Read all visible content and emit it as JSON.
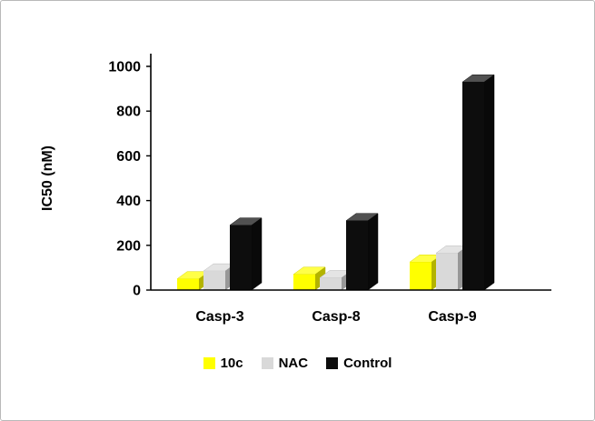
{
  "chart_data": {
    "type": "bar",
    "style": "3d-clustered",
    "title": "",
    "xlabel": "",
    "ylabel": "IC50 (nM)",
    "ylim": [
      0,
      1000
    ],
    "yticks": [
      0,
      200,
      400,
      600,
      800,
      1000
    ],
    "grid": false,
    "legend_position": "bottom",
    "categories": [
      "Casp-3",
      "Casp-8",
      "Casp-9"
    ],
    "series": [
      {
        "name": "10c",
        "color": "#FFFF00",
        "values": [
          50,
          70,
          125
        ]
      },
      {
        "name": "NAC",
        "color": "#D9D9D9",
        "values": [
          85,
          55,
          165
        ]
      },
      {
        "name": "Control",
        "color": "#0D0D0D",
        "values": [
          290,
          310,
          930
        ]
      }
    ],
    "colors": {
      "axis": "#000000",
      "text": "#000000",
      "border": "#B9B9B9"
    }
  }
}
